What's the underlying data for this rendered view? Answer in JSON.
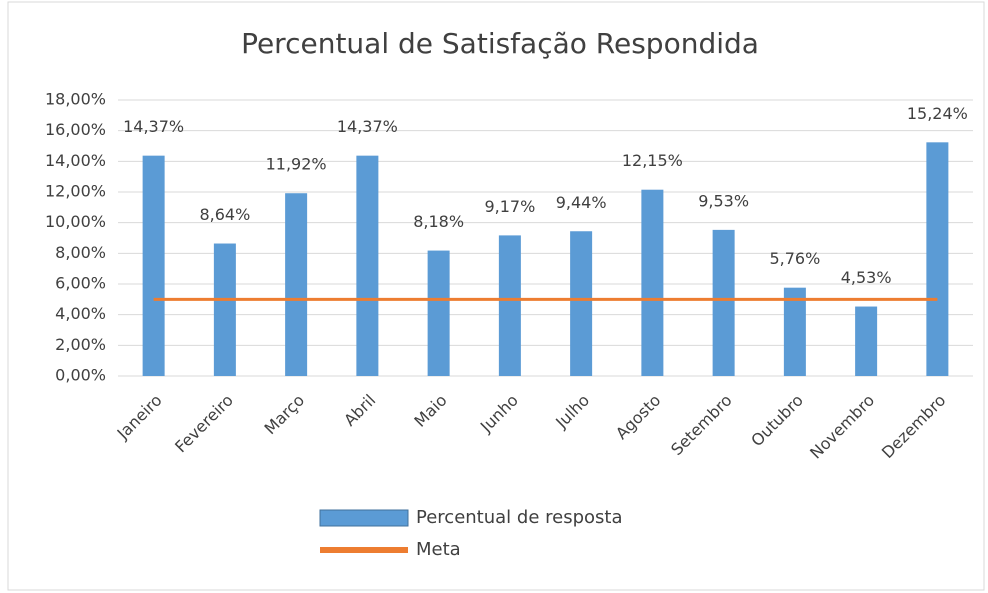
{
  "chart_data": {
    "type": "bar",
    "title": "Percentual de Satisfação Respondida",
    "categories": [
      "Janeiro",
      "Fevereiro",
      "Março",
      "Abril",
      "Maio",
      "Junho",
      "Julho",
      "Agosto",
      "Setembro",
      "Outubro",
      "Novembro",
      "Dezembro"
    ],
    "series": [
      {
        "name": "Percentual de resposta",
        "color": "#5b9bd5",
        "type": "bar",
        "values": [
          14.37,
          8.64,
          11.92,
          14.37,
          8.18,
          9.17,
          9.44,
          12.15,
          9.53,
          5.76,
          4.53,
          15.24
        ],
        "value_labels": [
          "14,37%",
          "8,64%",
          "11,92%",
          "14,37%",
          "8,18%",
          "9,17%",
          "9,44%",
          "12,15%",
          "9,53%",
          "5,76%",
          "4,53%",
          "15,24%"
        ]
      },
      {
        "name": "Meta",
        "color": "#ed7d31",
        "type": "line",
        "values": [
          5,
          5,
          5,
          5,
          5,
          5,
          5,
          5,
          5,
          5,
          5,
          5
        ]
      }
    ],
    "ylim": [
      0,
      18
    ],
    "yticks": [
      {
        "value": 0,
        "label": "0,00%"
      },
      {
        "value": 2,
        "label": "2,00%"
      },
      {
        "value": 4,
        "label": "4,00%"
      },
      {
        "value": 6,
        "label": "6,00%"
      },
      {
        "value": 8,
        "label": "8,00%"
      },
      {
        "value": 10,
        "label": "10,00%"
      },
      {
        "value": 12,
        "label": "12,00%"
      },
      {
        "value": 14,
        "label": "14,00%"
      },
      {
        "value": 16,
        "label": "16,00%"
      },
      {
        "value": 18,
        "label": "18,00%"
      }
    ],
    "grid": true,
    "legend": "bottom"
  }
}
